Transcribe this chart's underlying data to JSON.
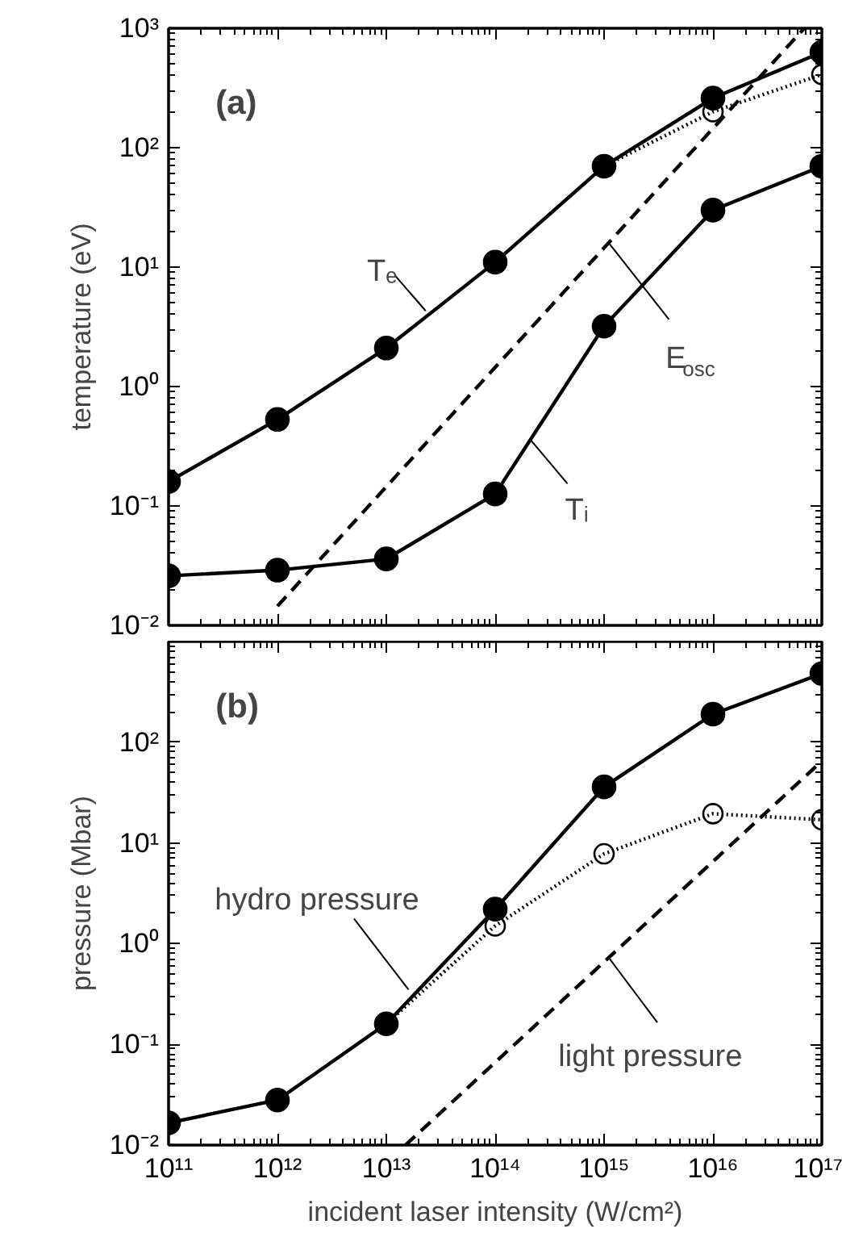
{
  "chart_data": [
    {
      "type": "line",
      "ylabel": "temperature (eV)",
      "log": "xy",
      "grid": false,
      "tick_labels": "y",
      "xlim": [
        100000000000.0,
        1e+17
      ],
      "ylim": [
        0.01,
        1000
      ],
      "xticks": [
        {
          "value": 100000000000.0,
          "label": null
        },
        {
          "value": 1000000000000.0,
          "label": null
        },
        {
          "value": 10000000000000.0,
          "label": null
        },
        {
          "value": 100000000000000.0,
          "label": null
        },
        {
          "value": 1000000000000000.0,
          "label": null
        },
        {
          "value": 1e+16,
          "label": null
        },
        {
          "value": 1e+17,
          "label": null
        }
      ],
      "yticks": [
        {
          "value": 0.01,
          "label": "10⁻²"
        },
        {
          "value": 0.1,
          "label": "10⁻¹"
        },
        {
          "value": 1,
          "label": "10⁰"
        },
        {
          "value": 10,
          "label": "10¹"
        },
        {
          "value": 100,
          "label": "10²"
        },
        {
          "value": 1000,
          "label": "10³"
        }
      ],
      "series": [
        {
          "x": [
            100000000000.0,
            1000000000000.0,
            10000000000000.0,
            100000000000000.0,
            1000000000000000.0,
            1e+16,
            1e+17
          ],
          "values": [
            0.16,
            0.53,
            2.1,
            11,
            70,
            260,
            630
          ],
          "color": "#000000",
          "marker": "circle",
          "line_style": "solid"
        },
        {
          "x": [
            1000000000000000.0,
            1e+16,
            1e+17
          ],
          "values": [
            70,
            200,
            410
          ],
          "color": "#000000",
          "marker": "circle",
          "line_style": "dotted"
        },
        {
          "x": [
            100000000000.0,
            1000000000000.0,
            10000000000000.0,
            100000000000000.0,
            1000000000000000.0,
            1e+16,
            1e+17
          ],
          "values": [
            0.026,
            0.029,
            0.036,
            0.126,
            3.2,
            30,
            70
          ],
          "color": "#000000",
          "marker": "circle",
          "line_style": "solid"
        },
        {
          "x": [
            1000000000000.0,
            6.9e+16
          ],
          "values": [
            0.0145,
            1000
          ],
          "color": "#000000",
          "marker": "none",
          "line_style": "dashed"
        }
      ],
      "annotations": [
        "(a)",
        {
          "text": "Tₑ",
          "x": 23000000000000.0,
          "y": 4.3
        },
        {
          "text": "E$_{osc}$",
          "x": 1100000000000000.0,
          "y": 16
        },
        {
          "text": "Tᵢ",
          "x": 210000000000000.0,
          "y": 0.36
        }
      ]
    },
    {
      "type": "line",
      "xlabel": "incident laser intensity (W/cm²)",
      "ylabel": "pressure (Mbar)",
      "log": "xy",
      "grid": false,
      "xlim": [
        100000000000.0,
        1e+17
      ],
      "ylim": [
        0.01,
        1000
      ],
      "xticks": [
        {
          "value": 100000000000.0,
          "label": "10¹¹"
        },
        {
          "value": 1000000000000.0,
          "label": "10¹²"
        },
        {
          "value": 10000000000000.0,
          "label": "10¹³"
        },
        {
          "value": 100000000000000.0,
          "label": "10¹⁴"
        },
        {
          "value": 1000000000000000.0,
          "label": "10¹⁵"
        },
        {
          "value": 1e+16,
          "label": "10¹⁶"
        },
        {
          "value": 1e+17,
          "label": "10¹⁷"
        }
      ],
      "yticks": [
        {
          "value": 0.01,
          "label": "10⁻²"
        },
        {
          "value": 0.1,
          "label": "10⁻¹"
        },
        {
          "value": 1,
          "label": "10⁰"
        },
        {
          "value": 10,
          "label": "10¹"
        },
        {
          "value": 100,
          "label": "10²"
        },
        {
          "value": 1000,
          "label": null
        }
      ],
      "series": [
        {
          "x": [
            100000000000.0,
            1000000000000.0,
            10000000000000.0,
            100000000000000.0,
            1000000000000000.0,
            1e+16,
            1e+17
          ],
          "values": [
            0.0166,
            0.028,
            0.16,
            2.2,
            36,
            190,
            480
          ],
          "color": "#000000",
          "marker": "circle",
          "line_style": "solid"
        },
        {
          "x": [
            10000000000000.0,
            100000000000000.0,
            1000000000000000.0,
            1e+16,
            1e+17
          ],
          "values": [
            0.16,
            1.5,
            7.8,
            19.5,
            17
          ],
          "color": "#000000",
          "marker": "circle",
          "line_style": "dotted"
        },
        {
          "x": [
            15000000000000.0,
            1e+17
          ],
          "values": [
            0.01,
            65
          ],
          "color": "#000000",
          "marker": "none",
          "line_style": "dashed"
        }
      ],
      "annotations": [
        "(b)",
        {
          "text": "hydro pressure",
          "x": 16000000000000.0,
          "y": 0.35
        },
        {
          "text": "light pressure",
          "x": 1100000000000000.0,
          "y": 0.73
        }
      ]
    }
  ]
}
